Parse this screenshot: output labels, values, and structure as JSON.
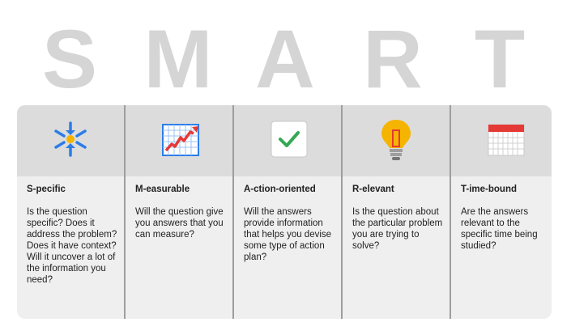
{
  "title_letters": [
    "S",
    "M",
    "A",
    "R",
    "T"
  ],
  "colors": {
    "letter": "#d5d5d5",
    "header_bg": "#dcdcdc",
    "body_bg": "#efefef",
    "divider": "#9e9e9e",
    "blue": "#2b7de9",
    "yellow": "#f5b400",
    "red": "#e53935",
    "green": "#34a853"
  },
  "columns": [
    {
      "icon": "sparkle-icon",
      "title": "S-pecific",
      "body": "Is the question specific? Does it address the problem? Does it have context? Will it uncover a lot of the information you need?"
    },
    {
      "icon": "line-graph-icon",
      "title": "M-easurable",
      "body": "Will the question give you answers that you can measure?"
    },
    {
      "icon": "checkmark-icon",
      "title": "A-ction-oriented",
      "body": "Will the answers provide information that helps you devise some type of action plan?"
    },
    {
      "icon": "lightbulb-icon",
      "title": "R-elevant",
      "body": "Is the question about the particular problem you are trying to solve?"
    },
    {
      "icon": "calendar-icon",
      "title": "T-ime-bound",
      "body": "Are the answers relevant to the specific time being studied?"
    }
  ]
}
